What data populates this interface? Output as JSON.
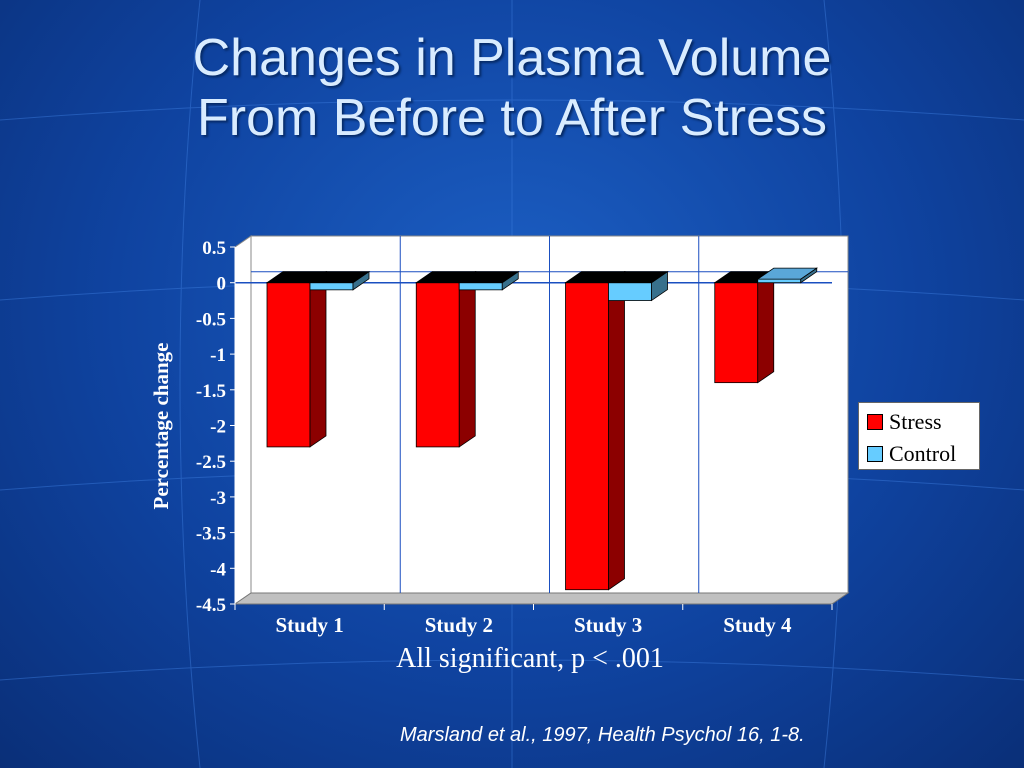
{
  "slide": {
    "title_line1": "Changes in Plasma Volume",
    "title_line2": "From Before to After Stress",
    "note": "All significant, p < .001",
    "citation": "Marsland et al., 1997, Health Psychol 16, 1-8."
  },
  "chart_data": {
    "type": "bar",
    "title": "",
    "xlabel": "",
    "ylabel": "Percentage change",
    "categories": [
      "Study 1",
      "Study 2",
      "Study 3",
      "Study 4"
    ],
    "series": [
      {
        "name": "Stress",
        "values": [
          -2.3,
          -2.3,
          -4.3,
          -1.4
        ],
        "color": "#ff0000"
      },
      {
        "name": "Control",
        "values": [
          -0.1,
          -0.1,
          -0.25,
          0.05
        ],
        "color": "#66ccff"
      }
    ],
    "ylim": [
      -4.5,
      0.5
    ],
    "yticks": [
      "0.5",
      "0",
      "-0.5",
      "-1",
      "-1.5",
      "-2",
      "-2.5",
      "-3",
      "-3.5",
      "-4",
      "-4.5"
    ],
    "grid": true,
    "legend": "right",
    "style": "3d-clustered-column"
  }
}
